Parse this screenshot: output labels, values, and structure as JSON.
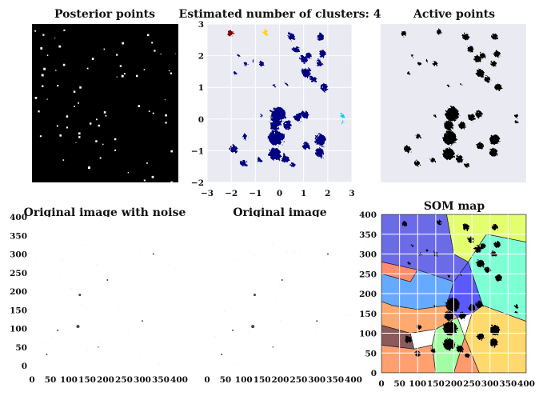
{
  "figure": {
    "panels": [
      {
        "id": "posterior",
        "title": "Posterior points"
      },
      {
        "id": "clusters",
        "title": "Estimated number of clusters: 4"
      },
      {
        "id": "active",
        "title": "Active points"
      },
      {
        "id": "noisy",
        "title": "Original image with noise"
      },
      {
        "id": "original",
        "title": "Original image"
      },
      {
        "id": "som",
        "title": "SOM map"
      }
    ]
  },
  "chart_data": [
    {
      "type": "image",
      "title": "Posterior points",
      "axes_visible": false,
      "background": "#000000",
      "foreground": "#ffffff"
    },
    {
      "type": "scatter",
      "title": "Estimated number of clusters: 4",
      "xlim": [
        -3,
        3
      ],
      "ylim": [
        -2,
        3
      ],
      "x_ticks": [
        "−3",
        "−2",
        "−1",
        "0",
        "1",
        "2",
        "3"
      ],
      "y_ticks": [
        "−2",
        "−1",
        "0",
        "1",
        "2",
        "3"
      ],
      "grid": true,
      "background": "#eaeaf2",
      "clusters": [
        {
          "color": "#000080",
          "blobs": [
            [
              0.5,
              2.6,
              0.14
            ],
            [
              1.7,
              2.6,
              0.13
            ],
            [
              0.7,
              2.2,
              0.13
            ],
            [
              1.0,
              1.9,
              0.15
            ],
            [
              1.2,
              2.0,
              0.12
            ],
            [
              1.8,
              2.05,
              0.14
            ],
            [
              1.65,
              1.75,
              0.12
            ],
            [
              1.1,
              1.45,
              0.17
            ],
            [
              1.4,
              1.25,
              0.13
            ],
            [
              1.85,
              1.0,
              0.15
            ],
            [
              -1.7,
              2.0,
              0.05
            ],
            [
              -1.4,
              1.75,
              0.07
            ],
            [
              -1.1,
              1.85,
              0.05
            ],
            [
              -0.75,
              1.75,
              0.1
            ],
            [
              -1.85,
              1.45,
              0.06
            ],
            [
              -0.2,
              1.05,
              0.05
            ],
            [
              0.3,
              1.1,
              0.04
            ],
            [
              -0.05,
              0.15,
              0.3
            ],
            [
              -0.2,
              -0.2,
              0.2
            ],
            [
              -0.15,
              -0.6,
              0.3
            ],
            [
              -0.2,
              -1.1,
              0.25
            ],
            [
              0.35,
              -0.2,
              0.15
            ],
            [
              0.25,
              -1.25,
              0.15
            ],
            [
              0.75,
              0.05,
              0.15
            ],
            [
              1.05,
              0.15,
              0.15
            ],
            [
              1.1,
              -0.85,
              0.15
            ],
            [
              1.7,
              -0.65,
              0.22
            ],
            [
              1.65,
              -1.05,
              0.18
            ],
            [
              -1.9,
              -0.95,
              0.15
            ],
            [
              -1.5,
              -1.4,
              0.12
            ],
            [
              -0.85,
              -1.3,
              0.1
            ],
            [
              -1.45,
              -0.55,
              0.1
            ],
            [
              -0.75,
              0.1,
              0.05
            ],
            [
              0.55,
              -1.45,
              0.1
            ]
          ]
        },
        {
          "color": "#800000",
          "blobs": [
            [
              -2.05,
              2.7,
              0.11
            ]
          ]
        },
        {
          "color": "#ffd700",
          "blobs": [
            [
              -0.6,
              2.75,
              0.1
            ]
          ]
        },
        {
          "color": "#00d0ff",
          "blobs": [
            [
              2.6,
              0.1,
              0.08
            ],
            [
              2.6,
              -0.1,
              0.06
            ]
          ]
        }
      ]
    },
    {
      "type": "image",
      "title": "Active points",
      "axes_visible": false,
      "background": "#eaeaf2",
      "foreground": "#000000"
    },
    {
      "type": "image",
      "title": "Original image with noise",
      "xlim": [
        0,
        400
      ],
      "ylim": [
        0,
        400
      ],
      "x_ticks": [
        "0",
        "50",
        "100",
        "150",
        "200",
        "250",
        "300",
        "350",
        "400"
      ],
      "y_ticks": [
        "0",
        "50",
        "100",
        "150",
        "200",
        "250",
        "300",
        "350",
        "400"
      ],
      "background": "#ffffff",
      "points": [
        [
          130,
          190,
          1.5
        ],
        [
          125,
          105,
          2
        ],
        [
          205,
          230,
          1
        ],
        [
          70,
          95,
          1
        ],
        [
          300,
          120,
          1
        ],
        [
          40,
          30,
          1
        ],
        [
          330,
          300,
          1
        ],
        [
          180,
          50,
          0.8
        ]
      ]
    },
    {
      "type": "image",
      "title": "Original image",
      "xlim": [
        0,
        400
      ],
      "ylim": [
        0,
        400
      ],
      "x_ticks": [
        "0",
        "50",
        "100",
        "150",
        "200",
        "250",
        "300",
        "350",
        "400"
      ],
      "y_ticks": [
        "0",
        "50",
        "100",
        "150",
        "200",
        "250",
        "300",
        "350",
        "400"
      ],
      "background": "#ffffff",
      "points": [
        [
          130,
          190,
          1.5
        ],
        [
          125,
          105,
          2
        ],
        [
          205,
          230,
          1
        ],
        [
          70,
          95,
          1
        ],
        [
          300,
          120,
          1
        ],
        [
          40,
          30,
          1
        ],
        [
          330,
          300,
          1
        ],
        [
          180,
          50,
          0.8
        ]
      ]
    },
    {
      "type": "image",
      "title": "SOM map",
      "xlim": [
        0,
        400
      ],
      "ylim": [
        0,
        400
      ],
      "x_ticks": [
        "0",
        "50",
        "100",
        "150",
        "200",
        "250",
        "300",
        "350",
        "400"
      ],
      "y_ticks": [
        "0",
        "50",
        "100",
        "150",
        "200",
        "250",
        "300",
        "350",
        "400"
      ],
      "grid": true,
      "regions": [
        {
          "color": "#6b6be8",
          "polygon": [
            [
              0,
              400
            ],
            [
              180,
              400
            ],
            [
              200,
              300
            ],
            [
              240,
              280
            ],
            [
              200,
              230
            ],
            [
              100,
              260
            ],
            [
              0,
              280
            ]
          ]
        },
        {
          "color": "#e3ff6e",
          "polygon": [
            [
              180,
              400
            ],
            [
              400,
              400
            ],
            [
              400,
              330
            ],
            [
              290,
              350
            ],
            [
              240,
              280
            ],
            [
              200,
              300
            ]
          ]
        },
        {
          "color": "#7dffd4",
          "polygon": [
            [
              240,
              280
            ],
            [
              290,
              350
            ],
            [
              400,
              330
            ],
            [
              400,
              130
            ],
            [
              280,
              170
            ]
          ]
        },
        {
          "color": "#ff8c6e",
          "polygon": [
            [
              0,
              280
            ],
            [
              100,
              260
            ],
            [
              80,
              230
            ],
            [
              0,
              250
            ]
          ]
        },
        {
          "color": "#66aaff",
          "polygon": [
            [
              0,
              250
            ],
            [
              80,
              230
            ],
            [
              100,
              260
            ],
            [
              200,
              230
            ],
            [
              180,
              170
            ],
            [
              100,
              160
            ],
            [
              30,
              170
            ],
            [
              0,
              180
            ]
          ]
        },
        {
          "color": "#5a5aff",
          "polygon": [
            [
              180,
              170
            ],
            [
              200,
              230
            ],
            [
              240,
              280
            ],
            [
              280,
              170
            ],
            [
              250,
              150
            ],
            [
              210,
              140
            ]
          ]
        },
        {
          "color": "#ffd86e",
          "polygon": [
            [
              280,
              170
            ],
            [
              400,
              130
            ],
            [
              400,
              0
            ],
            [
              270,
              0
            ],
            [
              230,
              90
            ],
            [
              250,
              150
            ]
          ]
        },
        {
          "color": "#ffa96e",
          "polygon": [
            [
              0,
              180
            ],
            [
              30,
              170
            ],
            [
              100,
              160
            ],
            [
              180,
              170
            ],
            [
              210,
              140
            ],
            [
              150,
              110
            ],
            [
              80,
              100
            ],
            [
              0,
              120
            ]
          ]
        },
        {
          "color": "#8c5a5a",
          "polygon": [
            [
              0,
              120
            ],
            [
              80,
              100
            ],
            [
              90,
              60
            ],
            [
              0,
              70
            ]
          ]
        },
        {
          "color": "#ffffff",
          "polygon": [
            [
              80,
              100
            ],
            [
              150,
              110
            ],
            [
              140,
              70
            ],
            [
              90,
              60
            ]
          ]
        },
        {
          "color": "#ffa06e",
          "polygon": [
            [
              0,
              70
            ],
            [
              90,
              60
            ],
            [
              140,
              70
            ],
            [
              150,
              0
            ],
            [
              0,
              0
            ]
          ]
        },
        {
          "color": "#a3ffa3",
          "polygon": [
            [
              140,
              70
            ],
            [
              150,
              110
            ],
            [
              210,
              140
            ],
            [
              230,
              90
            ],
            [
              200,
              0
            ],
            [
              150,
              0
            ]
          ]
        },
        {
          "color": "#ff9a6e",
          "polygon": [
            [
              200,
              0
            ],
            [
              230,
              90
            ],
            [
              270,
              0
            ]
          ]
        }
      ]
    }
  ]
}
